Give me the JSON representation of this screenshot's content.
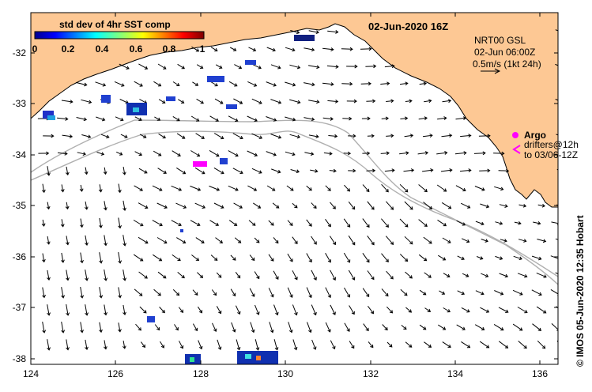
{
  "title": "02-Jun-2020 16Z",
  "colorbar": {
    "label": "std dev of 4hr SST comp",
    "ticks": [
      "0",
      "0.2",
      "0.4",
      "0.6",
      "0.8",
      "1"
    ]
  },
  "info": {
    "line1": "NRT00 GSL",
    "line2": "02-Jun 06:00Z",
    "line3": "0.5m/s (1kt 24h)"
  },
  "legend": {
    "argo": "Argo",
    "drifters_line1": "drifters@12h",
    "drifters_line2": "to 03/06-12Z"
  },
  "credit": "© IMOS 05-Jun-2020 12:35 Hobart",
  "axes": {
    "x_ticks": [
      "124",
      "126",
      "128",
      "130",
      "132",
      "134",
      "136"
    ],
    "y_ticks": [
      "-32",
      "-33",
      "-34",
      "-35",
      "-36",
      "-37",
      "-38"
    ]
  },
  "colors": {
    "land": "#fdc894",
    "sea": "#ffffff",
    "argo": "#ff00ff",
    "isobath": "#b0b0b0"
  }
}
